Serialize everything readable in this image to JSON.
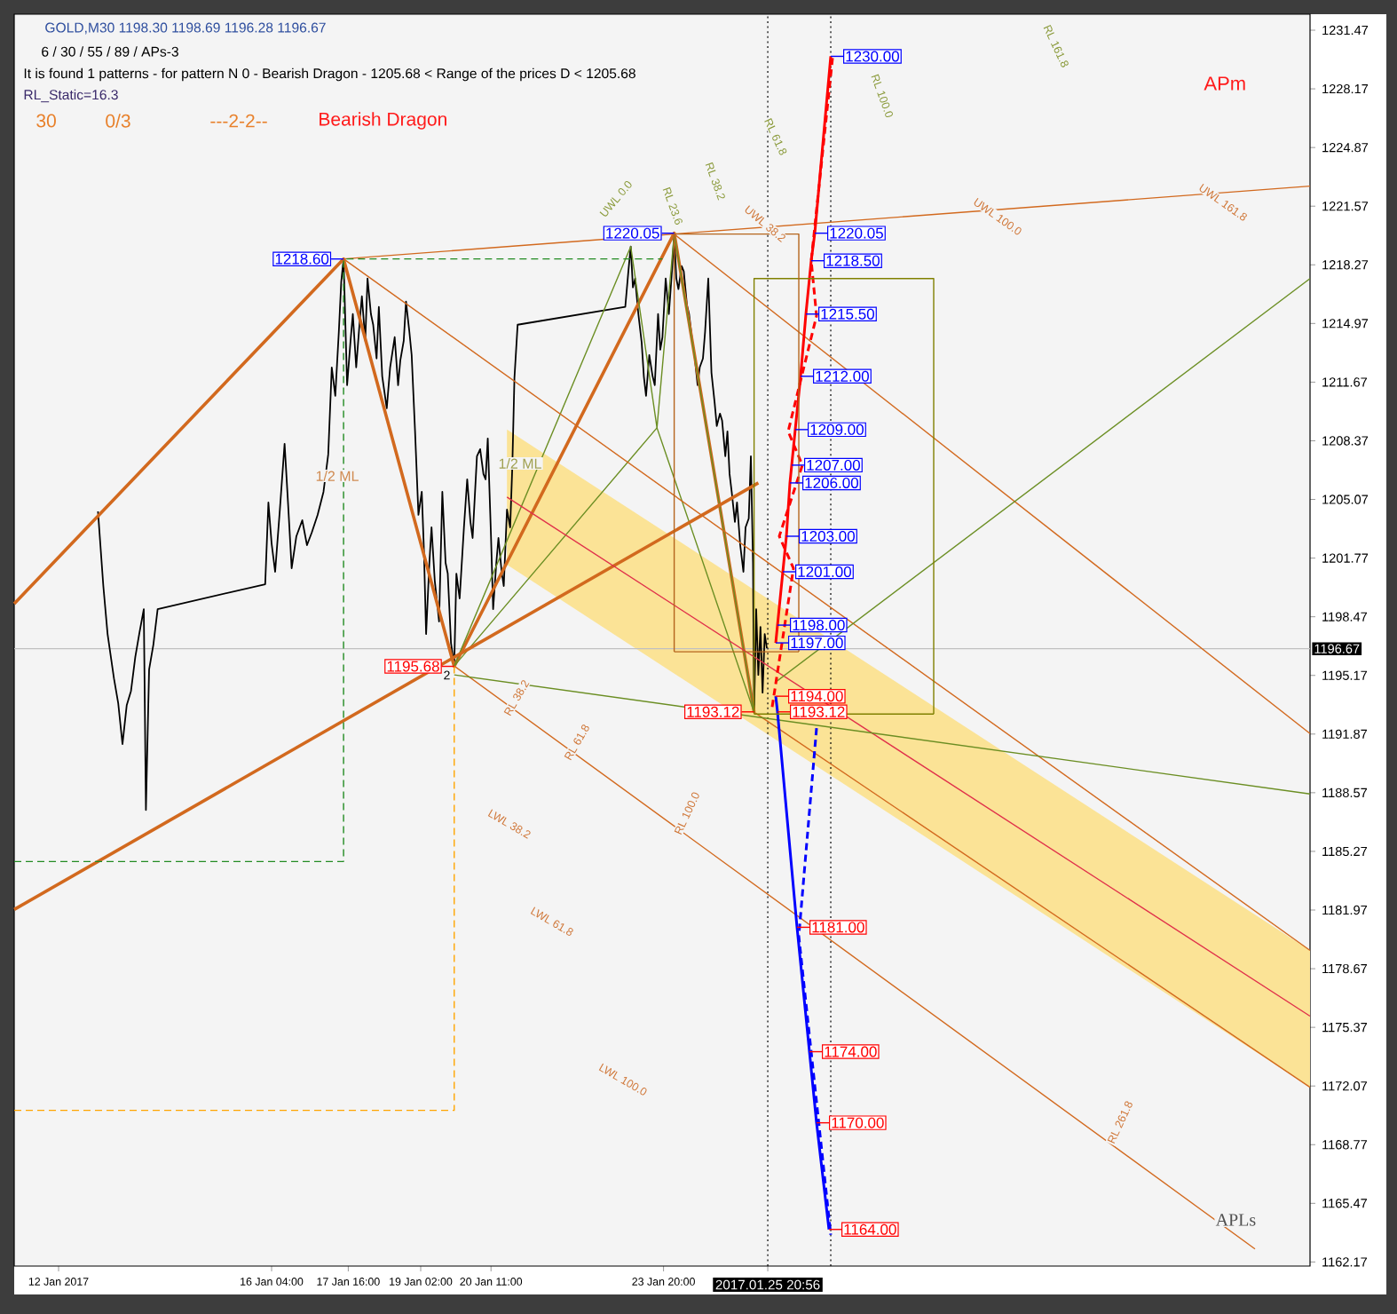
{
  "chart_data": {
    "type": "line",
    "title": "GOLD,M30  1198.30 1198.69 1196.28 1196.67",
    "xlim": [
      "2017-01-11T03:10",
      "2017-02-05T11:30"
    ],
    "ylim": [
      1161.94,
      1232.37
    ],
    "xticks": [
      {
        "value": "2017-01-12",
        "label": "12 Jan 2017"
      },
      {
        "value": "2017-01-16T04:00",
        "label": "16 Jan 04:00"
      },
      {
        "value": "2017-01-17T16:00",
        "label": "17 Jan 16:00"
      },
      {
        "value": "2017-01-19T02:00",
        "label": "19 Jan 02:00"
      },
      {
        "value": "2017-01-20T11:00",
        "label": "20 Jan 11:00"
      },
      {
        "value": "2017-01-23T20:00",
        "label": "23 Jan 20:00"
      },
      {
        "value": "2017-01-25T20:56",
        "label": "2017.01.25 20:56"
      }
    ],
    "yticks": [
      1162.17,
      1165.47,
      1168.77,
      1172.07,
      1175.37,
      1178.67,
      1181.97,
      1185.27,
      1188.57,
      1191.87,
      1195.17,
      1198.47,
      1201.77,
      1205.07,
      1208.37,
      1211.67,
      1214.97,
      1218.27,
      1221.57,
      1224.87,
      1228.17,
      1231.47
    ],
    "series": [
      {
        "color": "#000000",
        "x": [
          "2017-01-12T18:30",
          "2017-01-12T21:00",
          "2017-01-12T23:00",
          "2017-01-13T02:00",
          "2017-01-13T04:00",
          "2017-01-13T06:00",
          "2017-01-13T08:00",
          "2017-01-13T10:00",
          "2017-01-13T12:00",
          "2017-01-13T14:00",
          "2017-01-13T16:00",
          "2017-01-13T17:00",
          "2017-01-13T18:30",
          "2017-01-13T20:30",
          "2017-01-13T22:30",
          "2017-01-16T01:00",
          "2017-01-16T02:30",
          "2017-01-16T04:00",
          "2017-01-16T05:40",
          "2017-01-16T07:53",
          "2017-01-16T10:06",
          "2017-01-16T11:45",
          "2017-01-16T13:25",
          "2017-01-16T15:38",
          "2017-01-16T18:24",
          "2017-01-16T20:37",
          "2017-01-16T22:50",
          "2017-01-17T01:36",
          "2017-01-17T04:22",
          "2017-01-17T06:35",
          "2017-01-17T08:15",
          "2017-01-17T09:54",
          "2017-01-17T11:34",
          "2017-01-17T12:41",
          "2017-01-17T13:47",
          "2017-01-17T15:27",
          "2017-01-17T17:04",
          "2017-01-17T18:08",
          "2017-01-17T19:43",
          "2017-01-17T21:19",
          "2017-01-17T22:23",
          "2017-01-17T23:58",
          "2017-01-18T01:02",
          "2017-01-18T02:38",
          "2017-01-18T03:41",
          "2017-01-18T05:17",
          "2017-01-18T06:21",
          "2017-01-18T07:56",
          "2017-01-18T10:04",
          "2017-01-18T11:39",
          "2017-01-18T13:47",
          "2017-01-18T15:23",
          "2017-01-18T16:26",
          "2017-01-18T18:02",
          "2017-01-18T19:06",
          "2017-01-18T20:41",
          "2017-01-18T21:45",
          "2017-01-18T23:21",
          "2017-01-19T00:56",
          "2017-01-19T02:30",
          "2017-01-19T03:31",
          "2017-01-19T04:32",
          "2017-01-19T06:04",
          "2017-01-19T07:05",
          "2017-01-19T08:36",
          "2017-01-19T10:38",
          "2017-01-19T12:09",
          "2017-01-19T13:41",
          "2017-01-19T14:42",
          "2017-01-19T16:13",
          "2017-01-19T17:44",
          "2017-01-19T18:45",
          "2017-01-19T20:17",
          "2017-01-19T22:18",
          "2017-01-19T23:50",
          "2017-01-20T01:21",
          "2017-01-20T02:22",
          "2017-01-20T04:24",
          "2017-01-20T05:55",
          "2017-01-20T07:27",
          "2017-01-20T08:28",
          "2017-01-20T09:29",
          "2017-01-20T11:00",
          "2017-01-20T12:00",
          "2017-01-20T13:30",
          "2017-01-20T14:30",
          "2017-01-20T16:00",
          "2017-01-20T17:00",
          "2017-01-20T18:30",
          "2017-01-20T20:00",
          "2017-01-20T21:00",
          "2017-01-20T22:00",
          "2017-01-20T23:30",
          "2017-01-23T02:02",
          "2017-01-23T03:34",
          "2017-01-23T04:36",
          "2017-01-23T05:37",
          "2017-01-23T06:39",
          "2017-01-23T08:11",
          "2017-01-23T09:44",
          "2017-01-23T10:45",
          "2017-01-23T11:47",
          "2017-01-23T13:19",
          "2017-01-23T14:52",
          "2017-01-23T15:53",
          "2017-01-23T17:26",
          "2017-01-23T18:28",
          "2017-01-23T19:29",
          "2017-01-23T21:00",
          "2017-01-23T22:30",
          "2017-01-24T00:00",
          "2017-01-24T01:00",
          "2017-01-24T02:00",
          "2017-01-24T03:00",
          "2017-01-24T04:30",
          "2017-01-24T05:30",
          "2017-01-24T07:00",
          "2017-01-24T08:00",
          "2017-01-24T09:30",
          "2017-01-24T10:30",
          "2017-01-24T12:00",
          "2017-01-24T13:00",
          "2017-01-24T14:30",
          "2017-01-24T15:30",
          "2017-01-24T17:00",
          "2017-01-24T18:30",
          "2017-01-24T20:00",
          "2017-01-24T21:00",
          "2017-01-24T22:30",
          "2017-01-24T23:30",
          "2017-01-25T01:00",
          "2017-01-25T02:00",
          "2017-01-25T03:00",
          "2017-01-25T04:00",
          "2017-01-25T05:30",
          "2017-01-25T06:30",
          "2017-01-25T08:00",
          "2017-01-25T09:30",
          "2017-01-25T10:30",
          "2017-01-25T12:00",
          "2017-01-25T13:00",
          "2017-01-25T14:00",
          "2017-01-25T14:30",
          "2017-01-25T15:30",
          "2017-01-25T16:30",
          "2017-01-25T17:30",
          "2017-01-25T18:30",
          "2017-01-25T19:30",
          "2017-01-25T20:30"
        ],
        "values": [
          1204.4,
          1200.2,
          1197.5,
          1195.0,
          1193.6,
          1191.3,
          1193.5,
          1194.3,
          1196.2,
          1197.6,
          1198.9,
          1187.6,
          1195.5,
          1196.9,
          1198.9,
          1200.3,
          1204.9,
          1202.6,
          1201.0,
          1204.5,
          1208.2,
          1204.8,
          1201.2,
          1203.0,
          1203.9,
          1202.5,
          1203.2,
          1204.2,
          1205.5,
          1207.6,
          1212.5,
          1210.9,
          1214.5,
          1217.3,
          1218.6,
          1211.5,
          1214.0,
          1215.5,
          1212.5,
          1215.0,
          1216.5,
          1214.0,
          1217.5,
          1215.5,
          1214.9,
          1213.0,
          1215.9,
          1212.0,
          1210.2,
          1212.5,
          1214.2,
          1211.5,
          1212.9,
          1214.0,
          1216.2,
          1214.5,
          1213.2,
          1208.9,
          1204.2,
          1205.5,
          1202.2,
          1197.5,
          1201.5,
          1203.5,
          1200.5,
          1198.2,
          1205.5,
          1201.5,
          1200.9,
          1197.0,
          1195.7,
          1200.9,
          1199.5,
          1203.5,
          1206.2,
          1203.8,
          1202.9,
          1207.5,
          1207.9,
          1206.5,
          1206.2,
          1208.5,
          1203.0,
          1198.9,
          1201.5,
          1202.9,
          1201.0,
          1200.2,
          1204.5,
          1203.5,
          1206.9,
          1211.9,
          1214.9,
          1215.9,
          1218.0,
          1219.3,
          1217.0,
          1217.5,
          1215.5,
          1213.9,
          1212.0,
          1210.9,
          1213.2,
          1212.0,
          1211.5,
          1215.5,
          1213.5,
          1214.2,
          1217.5,
          1215.5,
          1218.0,
          1220.0,
          1217.5,
          1216.9,
          1218.2,
          1217.9,
          1216.0,
          1215.5,
          1214.0,
          1213.2,
          1211.5,
          1212.5,
          1213.0,
          1214.5,
          1217.5,
          1212.2,
          1210.5,
          1209.2,
          1209.9,
          1209.5,
          1207.5,
          1208.9,
          1206.5,
          1205.5,
          1203.8,
          1204.9,
          1202.5,
          1201.0,
          1203.5,
          1204.0,
          1207.5,
          1201.5,
          1193.1,
          1198.9,
          1195.2,
          1197.9,
          1194.2,
          1197.5,
          1196.7
        ]
      },
      {
        "color": "#d2691e",
        "x": [
          "2017-01-11T03:10",
          "2017-01-17T13:47",
          "2017-01-19T17:44",
          "2017-01-24T01:00",
          "2017-01-25T14:30"
        ],
        "values": [
          1199.2,
          1218.6,
          1195.68,
          1220.05,
          1193.12
        ],
        "value_labels": [
          null,
          "1218.60",
          "1195.68",
          "1220.05",
          "1193.12"
        ]
      },
      {
        "color": "#6b8e23",
        "x": [
          "2017-01-19T17:44",
          "2017-01-23T04:36",
          "2017-01-23T16:55",
          "2017-01-24T01:00",
          "2017-01-25T14:30"
        ],
        "values": [
          1195.7,
          1219.3,
          1209.1,
          1220.0,
          1193.1
        ]
      },
      {
        "color": "#6b8e23",
        "x": [
          "2017-01-19T17:44",
          "2017-01-23T16:55",
          "2017-01-25T14:30"
        ],
        "values": [
          1195.7,
          1209.1,
          1193.1
        ]
      },
      {
        "color": "#d2691e",
        "x": [
          "2017-01-11T03:10",
          "2017-01-25T16:30"
        ],
        "values": [
          1182.0,
          1206.0
        ]
      },
      {
        "color": "#e0304a",
        "x": [
          "2017-01-20T18:30",
          "2017-02-05T11:30"
        ],
        "values": [
          1205.2,
          1176.0
        ],
        "lower": [
          1201.4,
          1172.0
        ],
        "upper": [
          1209.0,
          1179.7
        ]
      },
      {
        "color": "#d2691e",
        "x": [
          "2017-01-17T13:47",
          "2017-02-05T11:30"
        ],
        "values": [
          1218.6,
          1179.7
        ]
      },
      {
        "color": "#d2691e",
        "x": [
          "2017-01-25T14:30",
          "2017-02-05T11:30"
        ],
        "values": [
          1193.1,
          1172.0
        ]
      },
      {
        "color": "#d2691e",
        "x": [
          "2017-01-24T01:00",
          "2017-02-05T11:30"
        ],
        "values": [
          1220.0,
          1191.9
        ]
      },
      {
        "color": "#d2691e",
        "x": [
          "2017-01-19T17:44",
          "2017-02-04T09:40"
        ],
        "values": [
          1195.7,
          1162.9
        ]
      },
      {
        "color": "#6b8e23",
        "x": [
          "2017-01-19T17:44",
          "2017-02-05T11:30"
        ],
        "values": [
          1195.2,
          1188.5
        ]
      },
      {
        "color": "#6b8e23",
        "x": [
          "2017-01-26T00:40",
          "2017-02-05T11:30"
        ],
        "values": [
          1194.8,
          1217.5
        ]
      },
      {
        "color": "#d2691e",
        "x": [
          "2017-01-17T13:47",
          "2017-02-05T11:30"
        ],
        "values": [
          1218.6,
          1222.7
        ]
      },
      {
        "color": "#228b22",
        "x": [
          "2017-01-11T03:10",
          "2017-01-17T13:47",
          "2017-01-17T13:47",
          "2017-01-23T19:29"
        ],
        "values": [
          1184.7,
          1184.7,
          1218.6,
          1218.6
        ],
        "line_style": "dashed"
      },
      {
        "color": "#ffa500",
        "x": [
          "2017-01-11T03:10",
          "2017-01-19T17:44",
          "2017-01-19T17:44"
        ],
        "values": [
          1170.7,
          1170.7,
          1195.7
        ],
        "line_style": "dashed"
      },
      {
        "color": "#ff0000",
        "x": [
          "2017-01-26T00:40",
          "2017-01-26T01:30",
          "2017-01-26T04:00",
          "2017-01-26T05:40",
          "2017-01-26T07:20",
          "2017-01-26T08:10",
          "2017-01-26T09:50",
          "2017-01-26T12:20",
          "2017-01-26T14:50",
          "2017-01-26T17:20",
          "2017-01-26T19:00",
          "2017-01-27T02:30"
        ],
        "values": [
          1197.0,
          1198.0,
          1201.0,
          1203.0,
          1206.0,
          1207.0,
          1209.0,
          1212.0,
          1215.5,
          1218.5,
          1220.05,
          1230.0
        ],
        "value_labels": [
          "1197.00",
          "1198.00",
          "1201.00",
          "1203.00",
          "1206.00",
          "1207.00",
          "1209.00",
          "1212.00",
          "1215.50",
          "1218.50",
          "1220.05",
          "1230.00"
        ]
      },
      {
        "color": "#ff0000",
        "x": [
          "2017-01-25T23:00",
          "2017-01-26T09:00",
          "2017-01-26T02:20",
          "2017-01-26T13:10",
          "2017-01-26T06:30",
          "2017-01-26T19:50",
          "2017-01-26T17:20",
          "2017-01-27T03:20"
        ],
        "values": [
          1193.4,
          1201.2,
          1203.0,
          1207.0,
          1208.9,
          1215.4,
          1218.5,
          1229.9
        ],
        "line_style": "dashed"
      },
      {
        "color": "#0000ff",
        "x": [
          "2017-01-26T00:40",
          "2017-01-26T01:30",
          "2017-01-26T10:40",
          "2017-01-26T16:30",
          "2017-01-26T19:50",
          "2017-01-27T01:40"
        ],
        "values": [
          1194.0,
          1193.12,
          1181.0,
          1174.0,
          1170.0,
          1164.0
        ],
        "value_labels": [
          "1194.00",
          "1193.12",
          "1181.00",
          "1174.00",
          "1170.00",
          "1164.00"
        ]
      },
      {
        "color": "#0000ff",
        "x": [
          "2017-01-26T19:50",
          "2017-01-26T11:30",
          "2017-01-27T02:30"
        ],
        "values": [
          1192.2,
          1180.5,
          1163.7
        ],
        "line_style": "dashed"
      },
      {
        "color": "#808000",
        "x": [
          "2017-01-25T14:30",
          "2017-01-25T14:30",
          "2017-01-29T02:50",
          "2017-01-29T02:50"
        ],
        "values": [
          1193.0,
          1217.5,
          1217.5,
          1193.0
        ]
      },
      {
        "color": "#808000",
        "x": [
          "2017-01-25T14:30",
          "2017-01-29T02:50"
        ],
        "values": [
          1193.0,
          1193.0
        ]
      },
      {
        "color": "#b5651d",
        "x": [
          "2017-01-24T01:00",
          "2017-01-24T01:00",
          "2017-01-26T11:30",
          "2017-01-26T11:30"
        ],
        "values": [
          1196.5,
          1220.0,
          1220.0,
          1196.5
        ]
      },
      {
        "color": "#b5651d",
        "x": [
          "2017-01-24T01:00",
          "2017-01-26T11:30"
        ],
        "values": [
          1196.5,
          1196.5
        ]
      }
    ],
    "ref_lines": [
      {
        "axis": "y",
        "value": 1196.67,
        "label": "1196.67",
        "color": "#c0c0c0"
      },
      {
        "axis": "x",
        "value": "2017-01-25T20:56",
        "color": "#000000",
        "line_style": "dotted"
      },
      {
        "axis": "x",
        "value": "2017-01-27T02:30",
        "color": "#000000",
        "line_style": "dotted"
      }
    ],
    "annotations": [
      "6 / 30 / 55 / 89 / APs-3",
      "It is found 1 patterns  -  for pattern N 0 - Bearish Dragon - 1205.68 < Range of the prices D < 1205.68",
      "RL_Static=16.3",
      "30",
      "0/3",
      "---2-2--",
      "Bearish Dragon",
      "APm",
      "APLs",
      "1/2 ML",
      "1/2 ML",
      "UWL 0.0",
      "RL 23.6",
      "RL 38.2",
      "RL 61.8",
      "UWL 38.2",
      "RL 100.0",
      "RL 161.8",
      "UWL 100.0",
      "UWL 161.8",
      "RL 38.2",
      "RL 61.8",
      "RL 100.0",
      "RL 261.8",
      "LWL 38.2",
      "LWL 61.8",
      "LWL 100.0",
      {
        "text": "2",
        "x": "2017-01-19T17:44",
        "y": 1195.7
      }
    ]
  }
}
